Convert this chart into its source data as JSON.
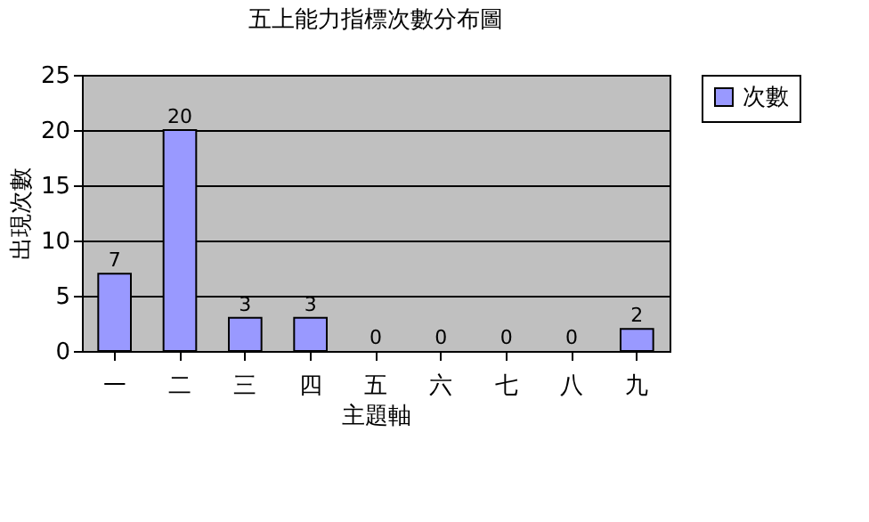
{
  "chart_data": {
    "type": "bar",
    "title": "五上能力指標次數分布圖",
    "xlabel": "主題軸",
    "ylabel": "出現次數",
    "categories": [
      "一",
      "二",
      "三",
      "四",
      "五",
      "六",
      "七",
      "八",
      "九"
    ],
    "series": [
      {
        "name": "次數",
        "color": "#9999ff",
        "values": [
          7,
          20,
          3,
          3,
          0,
          0,
          0,
          0,
          2
        ]
      }
    ],
    "ylim": [
      0,
      25
    ],
    "yticks": [
      0,
      5,
      10,
      15,
      20,
      25
    ],
    "grid": "y",
    "legend": "right",
    "data_labels": true
  }
}
